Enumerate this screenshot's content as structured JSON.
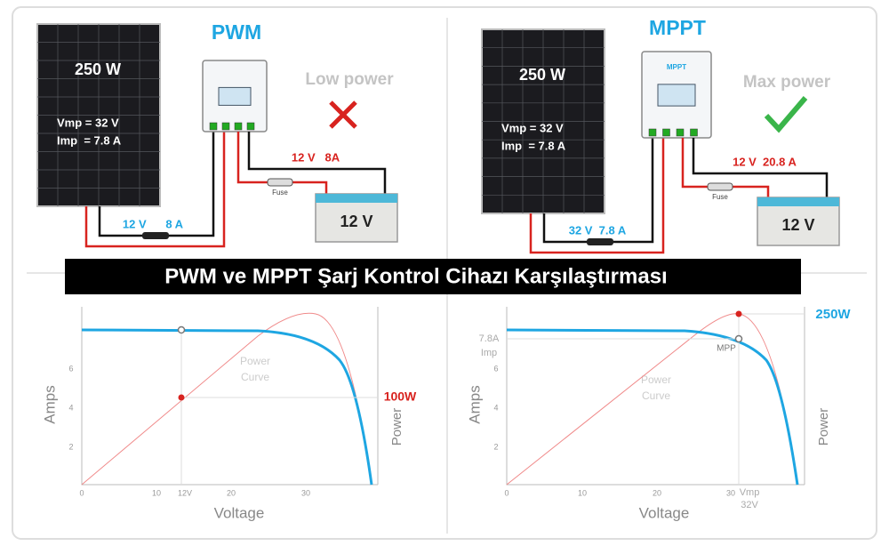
{
  "title": "PWM ve MPPT Şarj Kontrol Cihazı Karşılaştırması",
  "panels": [
    {
      "heading": "PWM",
      "panel_power": "250 W",
      "vmp": "Vmp = 32 V",
      "imp": "Imp  = 7.8 A",
      "status": "Low power",
      "output": "12 V   8A",
      "fuse": "Fuse",
      "battery": "12 V",
      "input": "12 V      8 A"
    },
    {
      "heading": "MPPT",
      "panel_power": "250 W",
      "vmp": "Vmp = 32 V",
      "imp": "Imp  = 7.8 A",
      "controller": "MPPT",
      "status": "Max power",
      "output": "12 V  20.8 A",
      "fuse": "Fuse",
      "battery": "12 V",
      "input": "32 V  7.8 A"
    }
  ],
  "charts": [
    {
      "y_label": "Amps",
      "x_label": "Voltage",
      "y2_label": "Power",
      "curve_label": [
        "Power",
        "Curve"
      ],
      "x_ticks": [
        "0",
        "10",
        "12V",
        "20",
        "30"
      ],
      "y_ticks": [
        "2",
        "4",
        "6"
      ],
      "power_label": "100W"
    },
    {
      "y_label": "Amps",
      "x_label": "Voltage",
      "y2_label": "Power",
      "curve_label": [
        "Power",
        "Curve"
      ],
      "x_ticks": [
        "0",
        "10",
        "20",
        "30"
      ],
      "y_ticks": [
        "2",
        "4",
        "6"
      ],
      "power_label": "250W",
      "mpp": "MPP",
      "imp_label": [
        "7.8A",
        "Imp"
      ],
      "vmp_label": [
        "Vmp",
        "32V"
      ]
    }
  ]
}
